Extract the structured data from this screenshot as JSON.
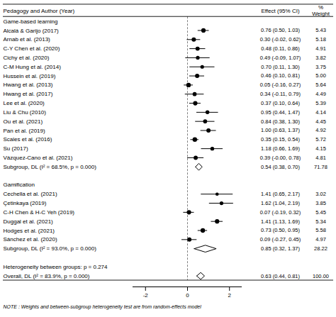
{
  "chart_data": {
    "type": "forest",
    "headers": {
      "label": "Pedagogy and Author (Year)",
      "effect": "Effect (95% CI)",
      "weight": "Weight",
      "weight_unit": "%"
    },
    "groups": [
      {
        "name": "Game-based learning",
        "studies": [
          {
            "label": "Alcalá & Garijo (2017)",
            "effect": 0.76,
            "ci_low": 0.5,
            "ci_high": 1.03,
            "weight": 5.43,
            "effect_label": "0.76 (0.50, 1.03)",
            "weight_label": "5.43"
          },
          {
            "label": "Arnab et al. (2013)",
            "effect": 0.3,
            "ci_low": -0.02,
            "ci_high": 0.62,
            "weight": 5.18,
            "effect_label": "0.30 (-0.02, 0.62)",
            "weight_label": "5.18"
          },
          {
            "label": "C-Y Chen et al. (2020)",
            "effect": 0.48,
            "ci_low": 0.11,
            "ci_high": 0.86,
            "weight": 4.91,
            "effect_label": "0.48 (0.11, 0.86)",
            "weight_label": "4.91"
          },
          {
            "label": "Cichy et al. (2020)",
            "effect": 0.49,
            "ci_low": -0.09,
            "ci_high": 1.07,
            "weight": 3.82,
            "effect_label": "0.49 (-0.09, 1.07)",
            "weight_label": "3.82"
          },
          {
            "label": "C-M Hung et al. (2014)",
            "effect": 0.7,
            "ci_low": 0.11,
            "ci_high": 1.3,
            "weight": 3.75,
            "effect_label": "0.70 (0.11, 1.30)",
            "weight_label": "3.75"
          },
          {
            "label": "Hussein et al. (2019)",
            "effect": 0.46,
            "ci_low": 0.1,
            "ci_high": 0.81,
            "weight": 5.0,
            "effect_label": "0.46 (0.10, 0.81)",
            "weight_label": "5.00"
          },
          {
            "label": "Hwang et al. (2013)",
            "effect": 0.05,
            "ci_low": -0.16,
            "ci_high": 0.27,
            "weight": 5.64,
            "effect_label": "0.05 (-0.16, 0.27)",
            "weight_label": "5.64"
          },
          {
            "label": "Hwang et al. (2017)",
            "effect": 0.34,
            "ci_low": -0.11,
            "ci_high": 0.79,
            "weight": 4.49,
            "effect_label": "0.34 (-0.11, 0.79)",
            "weight_label": "4.49"
          },
          {
            "label": "Lee et al. (2020)",
            "effect": 0.37,
            "ci_low": 0.1,
            "ci_high": 0.64,
            "weight": 5.39,
            "effect_label": "0.37 (0.10, 0.64)",
            "weight_label": "5.39"
          },
          {
            "label": "Liu & Chu (2010)",
            "effect": 0.95,
            "ci_low": 0.44,
            "ci_high": 1.47,
            "weight": 4.14,
            "effect_label": "0.95 (0.44, 1.47)",
            "weight_label": "4.14"
          },
          {
            "label": "Ou et al. (2021)",
            "effect": 0.84,
            "ci_low": 0.38,
            "ci_high": 1.3,
            "weight": 4.45,
            "effect_label": "0.84 (0.38, 1.30)",
            "weight_label": "4.45"
          },
          {
            "label": "Pan et al. (2019)",
            "effect": 1.0,
            "ci_low": 0.63,
            "ci_high": 1.37,
            "weight": 4.92,
            "effect_label": "1.00 (0.63, 1.37)",
            "weight_label": "4.92"
          },
          {
            "label": "Scales et al. (2016)",
            "effect": 0.35,
            "ci_low": 0.15,
            "ci_high": 0.54,
            "weight": 5.72,
            "effect_label": "0.35 (0.15, 0.54)",
            "weight_label": "5.72"
          },
          {
            "label": "Su (2017)",
            "effect": 1.18,
            "ci_low": 0.66,
            "ci_high": 1.69,
            "weight": 4.15,
            "effect_label": "1.18 (0.66, 1.69)",
            "weight_label": "4.15"
          },
          {
            "label": "Vázquez-Cano et al. (2021)",
            "effect": 0.39,
            "ci_low": -0.0,
            "ci_high": 0.78,
            "weight": 4.81,
            "effect_label": "0.39 (-0.00, 0.78)",
            "weight_label": "4.81"
          }
        ],
        "summary": {
          "label": "Subgroup, DL (I² = 68.5%, p = 0.000)",
          "effect": 0.54,
          "ci_low": 0.38,
          "ci_high": 0.7,
          "effect_label": "0.54 (0.38, 0.70)",
          "weight_label": "71.78"
        }
      },
      {
        "name": "Gamification",
        "studies": [
          {
            "label": "Cechella et al. (2021)",
            "effect": 1.41,
            "ci_low": 0.65,
            "ci_high": 2.17,
            "weight": 3.02,
            "effect_label": "1.41 (0.65, 2.17)",
            "weight_label": "3.02"
          },
          {
            "label": "Çetinkaya (2019)",
            "effect": 1.62,
            "ci_low": 1.04,
            "ci_high": 2.19,
            "weight": 3.85,
            "effect_label": "1.62 (1.04, 2.19)",
            "weight_label": "3.85"
          },
          {
            "label": "C-H Chen & H-C Yeh (2019)",
            "effect": 0.07,
            "ci_low": -0.19,
            "ci_high": 0.32,
            "weight": 5.45,
            "effect_label": "0.07 (-0.19, 0.32)",
            "weight_label": "5.45"
          },
          {
            "label": "Duggal et al. (2021)",
            "effect": 1.41,
            "ci_low": 1.13,
            "ci_high": 1.69,
            "weight": 5.34,
            "effect_label": "1.41 (1.13, 1.69)",
            "weight_label": "5.34"
          },
          {
            "label": "Hodges et al. (2021)",
            "effect": 0.73,
            "ci_low": 0.5,
            "ci_high": 0.95,
            "weight": 5.58,
            "effect_label": "0.73 (0.50, 0.95)",
            "weight_label": "5.58"
          },
          {
            "label": "Sánchez et al. (2020)",
            "effect": 0.09,
            "ci_low": -0.27,
            "ci_high": 0.45,
            "weight": 4.97,
            "effect_label": "0.09 (-0.27, 0.45)",
            "weight_label": "4.97"
          }
        ],
        "summary": {
          "label": "Subgroup, DL (I² = 93.0%, p = 0.000)",
          "effect": 0.85,
          "ci_low": 0.32,
          "ci_high": 1.37,
          "effect_label": "0.85 (0.32, 1.37)",
          "weight_label": "28.22"
        }
      }
    ],
    "heterogeneity_text": "Heterogeneity between groups: p = 0.274",
    "overall": {
      "label": "Overall, DL (I² = 83.9%, p = 0.000)",
      "effect": 0.63,
      "ci_low": 0.44,
      "ci_high": 0.81,
      "effect_label": "0.63 (0.44, 0.81)",
      "weight_label": "100.00"
    },
    "note": "NOTE : Weights and between-subgroup heterogeneity test are from random-effects model",
    "xlim": [
      -2.6,
      2.6
    ],
    "xticks": [
      -2,
      0,
      2
    ],
    "reference_line": 0,
    "color": "#000000"
  }
}
